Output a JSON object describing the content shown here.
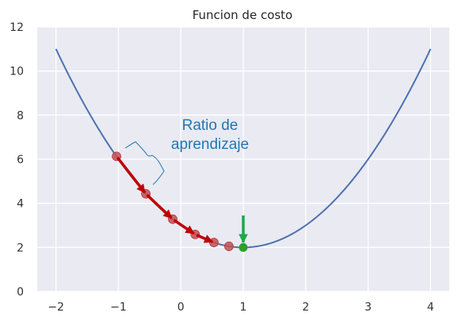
{
  "chart_data": {
    "type": "line",
    "title": "Funcion de costo",
    "xlabel": "",
    "ylabel": "",
    "xlim": [
      -2.3,
      4.3
    ],
    "ylim": [
      0,
      12
    ],
    "grid": true,
    "x_ticks": [
      -2,
      -1,
      0,
      1,
      2,
      3,
      4
    ],
    "x_tick_labels": [
      "−2",
      "−1",
      "0",
      "1",
      "2",
      "3",
      "4"
    ],
    "y_ticks": [
      0,
      2,
      4,
      6,
      8,
      10,
      12
    ],
    "y_tick_labels": [
      "0",
      "2",
      "4",
      "6",
      "8",
      "10",
      "12"
    ],
    "series": [
      {
        "function": "y = (x - 1)^2 + 2",
        "x_range": [
          -2,
          4
        ],
        "color": "#4c72b0"
      }
    ],
    "descent_points": [
      {
        "x": -1.03,
        "y": 6.13
      },
      {
        "x": -0.56,
        "y": 4.43
      },
      {
        "x": -0.13,
        "y": 3.28
      },
      {
        "x": 0.23,
        "y": 2.59
      },
      {
        "x": 0.53,
        "y": 2.22
      },
      {
        "x": 0.77,
        "y": 2.05
      }
    ],
    "minimum_point": {
      "x": 1.0,
      "y": 2.0
    },
    "annotation": {
      "lines": [
        "Ratio de",
        "aprendizaje"
      ],
      "color": "#1f77b4"
    },
    "colors": {
      "background": "#eaeaf2",
      "grid": "#ffffff",
      "curve": "#4c72b0",
      "points": "#c44e52",
      "arrows": "#c00000",
      "minimum": "#2ca02c"
    }
  }
}
